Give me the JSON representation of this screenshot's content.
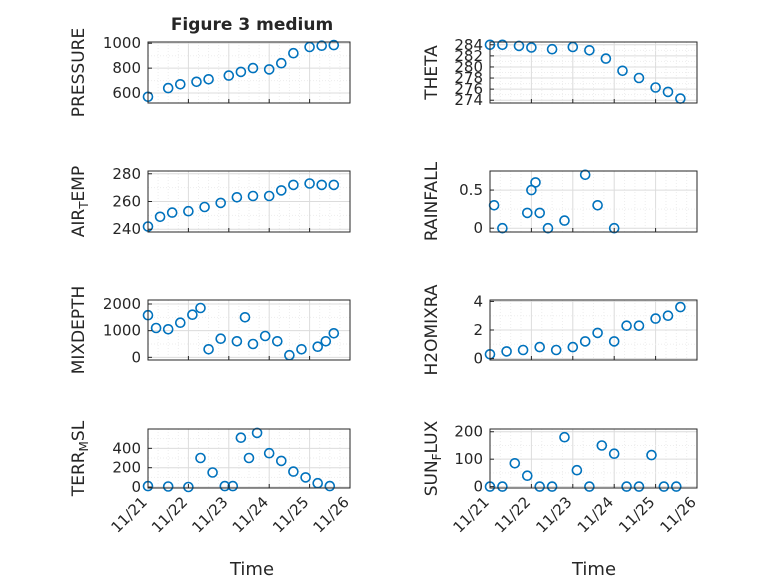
{
  "figure": {
    "title": "Figure 3 medium",
    "marker_color": "#0072BD",
    "time_ticks": [
      "11/21",
      "11/22",
      "11/23",
      "11/24",
      "11/25",
      "11/26"
    ],
    "xlabel": "Time"
  },
  "chart_data": [
    {
      "type": "scatter",
      "ylabel": "PRESSURE",
      "yticks": [
        600,
        800,
        1000
      ],
      "ylim": [
        520,
        1010
      ],
      "xlim": [
        0,
        5
      ],
      "grid": true,
      "x": [
        0,
        0.5,
        0.8,
        1.2,
        1.5,
        2.0,
        2.3,
        2.6,
        3.0,
        3.3,
        3.6,
        4.0,
        4.3,
        4.6
      ],
      "values": [
        570,
        640,
        670,
        690,
        710,
        740,
        770,
        800,
        790,
        840,
        920,
        970,
        980,
        985
      ]
    },
    {
      "type": "scatter",
      "ylabel": "THETA",
      "yticks": [
        274,
        276,
        278,
        280,
        282,
        284
      ],
      "ylim": [
        273.5,
        284.5
      ],
      "xlim": [
        0,
        5
      ],
      "grid": true,
      "x": [
        0,
        0.3,
        0.7,
        1.0,
        1.5,
        2.0,
        2.4,
        2.8,
        3.2,
        3.6,
        4.0,
        4.3,
        4.6
      ],
      "values": [
        284,
        284,
        283.8,
        283.5,
        283.2,
        283.6,
        283,
        281.5,
        279.3,
        278,
        276.3,
        275.5,
        274.3
      ]
    },
    {
      "type": "scatter",
      "ylabel": "AIR_TEMP",
      "yticks": [
        240,
        260,
        280
      ],
      "ylim": [
        238,
        282
      ],
      "xlim": [
        0,
        5
      ],
      "grid": true,
      "x": [
        0,
        0.3,
        0.6,
        1.0,
        1.4,
        1.8,
        2.2,
        2.6,
        3.0,
        3.3,
        3.6,
        4.0,
        4.3,
        4.6
      ],
      "values": [
        242,
        249,
        252,
        253,
        256,
        259,
        263,
        264,
        264,
        268,
        272,
        273,
        272,
        272
      ]
    },
    {
      "type": "scatter",
      "ylabel": "RAINFALL",
      "yticks": [
        0,
        0.5
      ],
      "ylim": [
        -0.05,
        0.75
      ],
      "xlim": [
        0,
        5
      ],
      "grid": true,
      "x": [
        0.1,
        0.3,
        0.9,
        1.0,
        1.1,
        1.2,
        1.4,
        1.8,
        2.3,
        2.6,
        3.0
      ],
      "values": [
        0.3,
        0.0,
        0.2,
        0.5,
        0.6,
        0.2,
        0.0,
        0.1,
        0.7,
        0.3,
        0.0
      ]
    },
    {
      "type": "scatter",
      "ylabel": "MIXDEPTH",
      "yticks": [
        0,
        1000,
        2000
      ],
      "ylim": [
        -100,
        2150
      ],
      "xlim": [
        0,
        5
      ],
      "grid": true,
      "x": [
        0,
        0.2,
        0.5,
        0.8,
        1.1,
        1.3,
        1.5,
        1.8,
        2.2,
        2.4,
        2.6,
        2.9,
        3.2,
        3.5,
        3.8,
        4.2,
        4.4,
        4.6
      ],
      "values": [
        1580,
        1100,
        1050,
        1300,
        1600,
        1850,
        300,
        700,
        600,
        1500,
        500,
        800,
        600,
        80,
        300,
        400,
        600,
        900
      ]
    },
    {
      "type": "scatter",
      "ylabel": "H2OMIXRA",
      "yticks": [
        0,
        2,
        4
      ],
      "ylim": [
        -0.1,
        4.1
      ],
      "xlim": [
        0,
        5
      ],
      "grid": true,
      "x": [
        0,
        0.4,
        0.8,
        1.2,
        1.6,
        2.0,
        2.3,
        2.6,
        3.0,
        3.3,
        3.6,
        4.0,
        4.3,
        4.6
      ],
      "values": [
        0.3,
        0.5,
        0.6,
        0.8,
        0.6,
        0.8,
        1.2,
        1.8,
        1.2,
        2.3,
        2.3,
        2.8,
        3.0,
        3.6
      ]
    },
    {
      "type": "scatter",
      "ylabel": "TERR_MSL",
      "yticks": [
        0,
        200,
        400
      ],
      "ylim": [
        -10,
        600
      ],
      "xlim": [
        0,
        5
      ],
      "grid": true,
      "x": [
        0,
        0.5,
        1.0,
        1.3,
        1.6,
        1.9,
        2.1,
        2.3,
        2.5,
        2.7,
        3.0,
        3.3,
        3.6,
        3.9,
        4.2,
        4.5
      ],
      "values": [
        10,
        5,
        0,
        300,
        150,
        10,
        10,
        510,
        300,
        560,
        350,
        270,
        160,
        100,
        40,
        10
      ]
    },
    {
      "type": "scatter",
      "ylabel": "SUN_FLUX",
      "yticks": [
        0,
        100,
        200
      ],
      "ylim": [
        -5,
        210
      ],
      "xlim": [
        0,
        5
      ],
      "grid": true,
      "x": [
        0,
        0.3,
        0.6,
        0.9,
        1.2,
        1.5,
        1.8,
        2.1,
        2.4,
        2.7,
        3.0,
        3.3,
        3.6,
        3.9,
        4.2,
        4.5
      ],
      "values": [
        0,
        0,
        85,
        40,
        0,
        0,
        180,
        60,
        0,
        150,
        120,
        0,
        0,
        115,
        0,
        0
      ]
    }
  ]
}
